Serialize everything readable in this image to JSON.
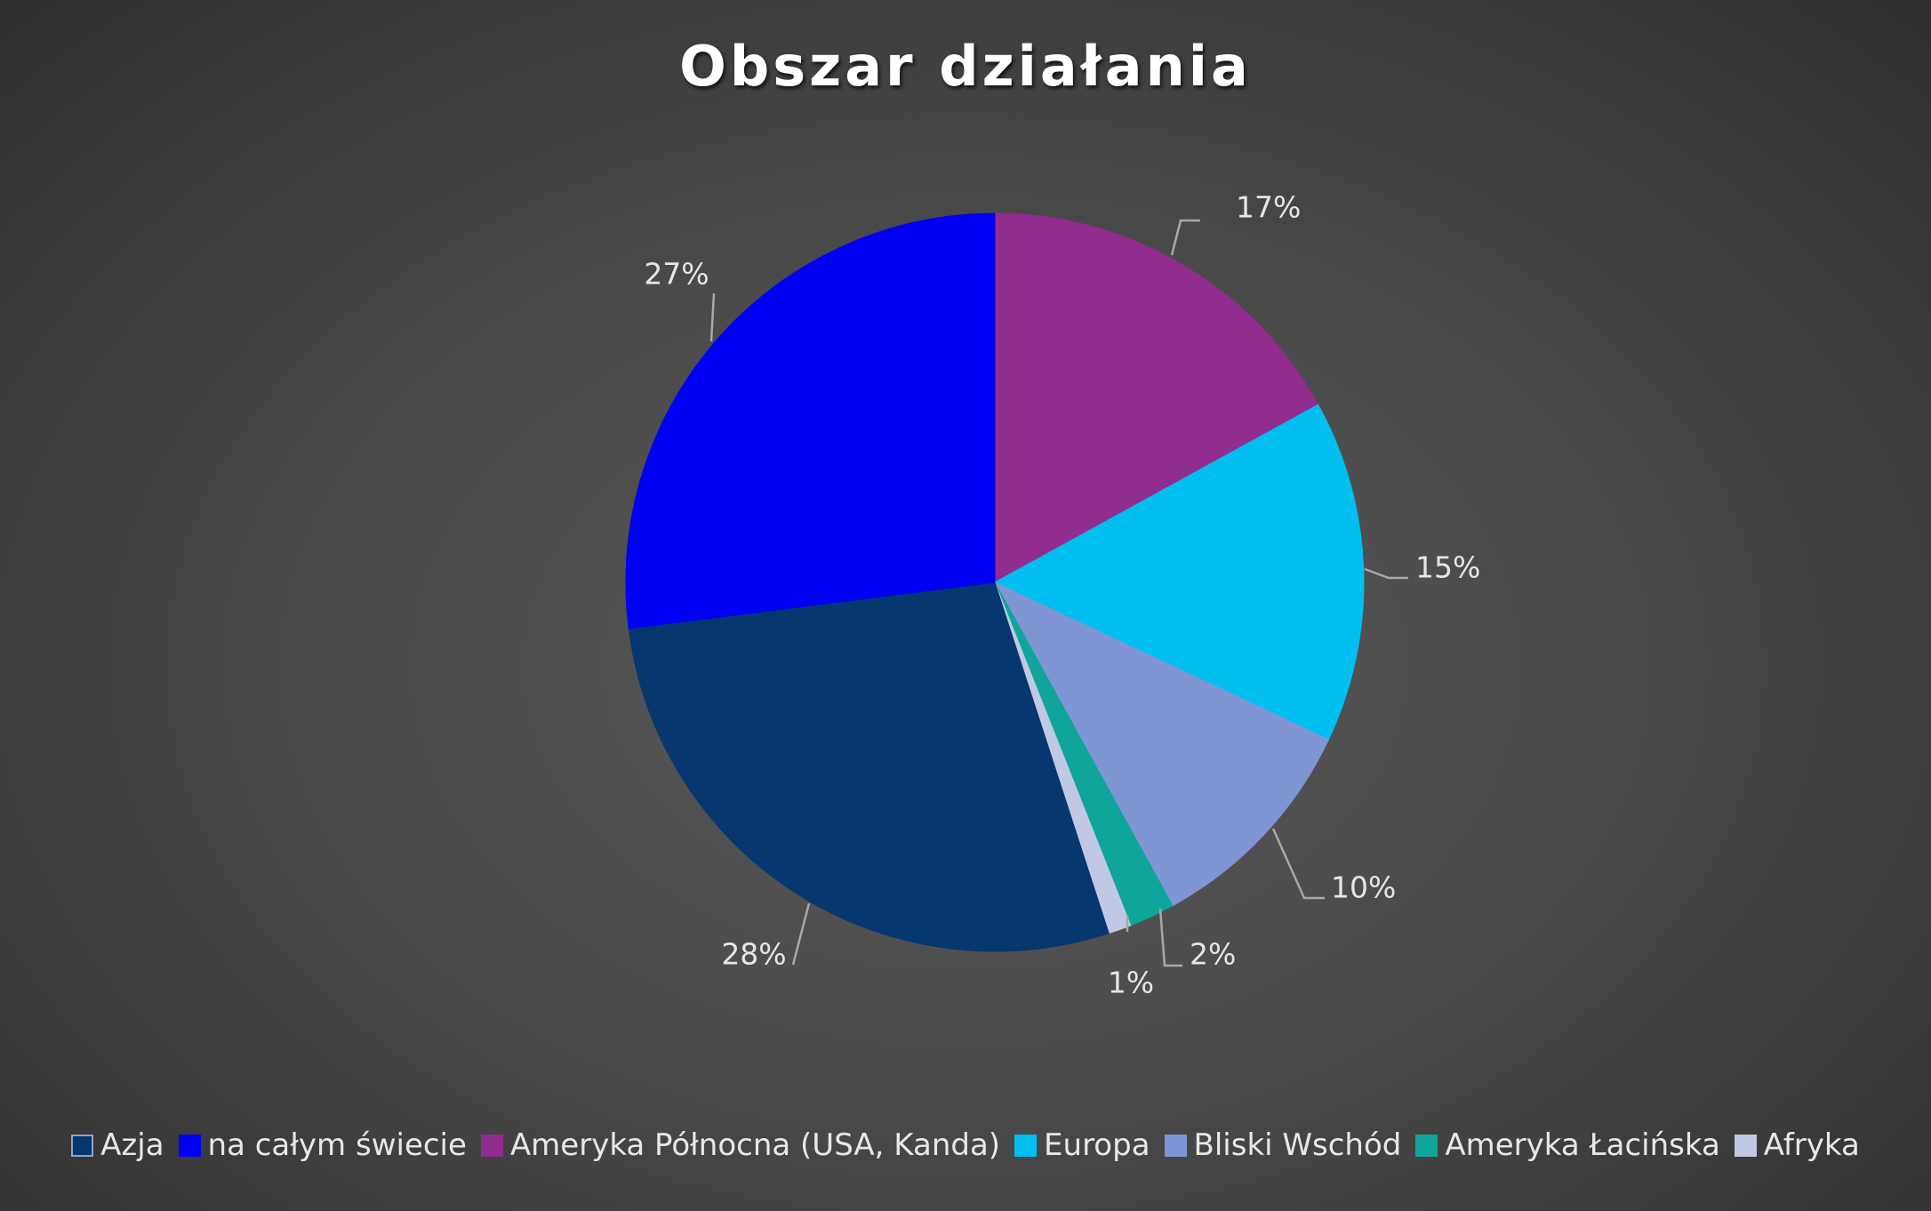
{
  "chart_data": {
    "type": "pie",
    "title": "Obszar działania",
    "categories": [
      "Azja",
      "na całym świecie",
      "Ameryka Północna (USA, Kanda)",
      "Europa",
      "Bliski Wschód",
      "Ameryka Łacińska",
      "Afryka"
    ],
    "values": [
      28,
      27,
      17,
      15,
      10,
      2,
      1
    ],
    "value_labels": [
      "28%",
      "27%",
      "17%",
      "15%",
      "10%",
      "2%",
      "1%"
    ],
    "colors": [
      "#06376f",
      "#0000f2",
      "#912d8f",
      "#00bff0",
      "#7f95d4",
      "#0fa59a",
      "#c0c8e4"
    ],
    "legend_position": "bottom",
    "data_labels": "outside with leader lines"
  }
}
